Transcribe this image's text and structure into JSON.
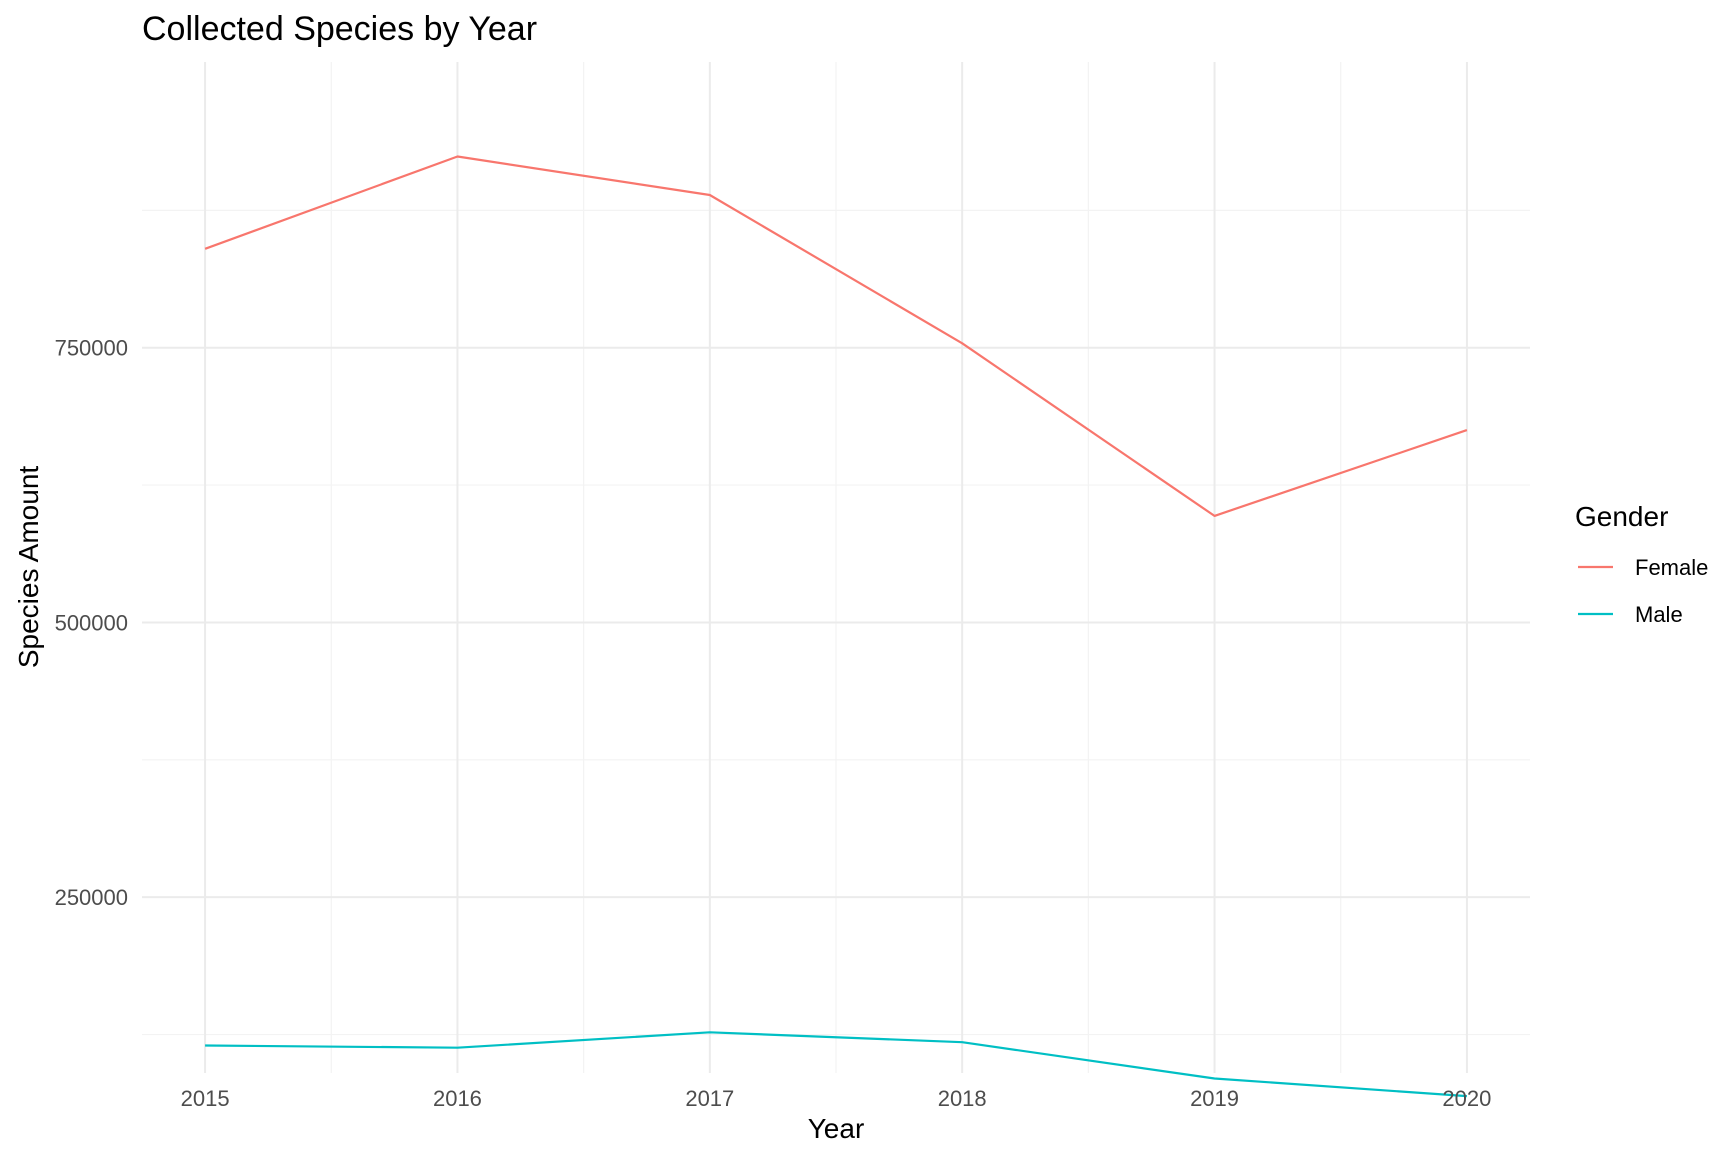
{
  "chart_data": {
    "type": "line",
    "title": "Collected Species by Year",
    "xlabel": "Year",
    "ylabel": "Species Amount",
    "x": [
      2015,
      2016,
      2017,
      2018,
      2019,
      2020
    ],
    "x_tick_labels": [
      "2015",
      "2016",
      "2017",
      "2018",
      "2019",
      "2020"
    ],
    "y_ticks": [
      250000,
      500000,
      750000
    ],
    "y_tick_labels": [
      "250000",
      "500000",
      "750000"
    ],
    "xlim": [
      2014.75,
      2020.25
    ],
    "ylim": [
      90000,
      1010000
    ],
    "grid": true,
    "legend": {
      "title": "Gender",
      "position": "right"
    },
    "series": [
      {
        "name": "Female",
        "color": "#F8766D",
        "values": [
          840000,
          924000,
          889000,
          754000,
          597000,
          675000
        ]
      },
      {
        "name": "Male",
        "color": "#00BFC4",
        "values": [
          115000,
          113000,
          127000,
          118000,
          85000,
          69000
        ]
      }
    ]
  }
}
